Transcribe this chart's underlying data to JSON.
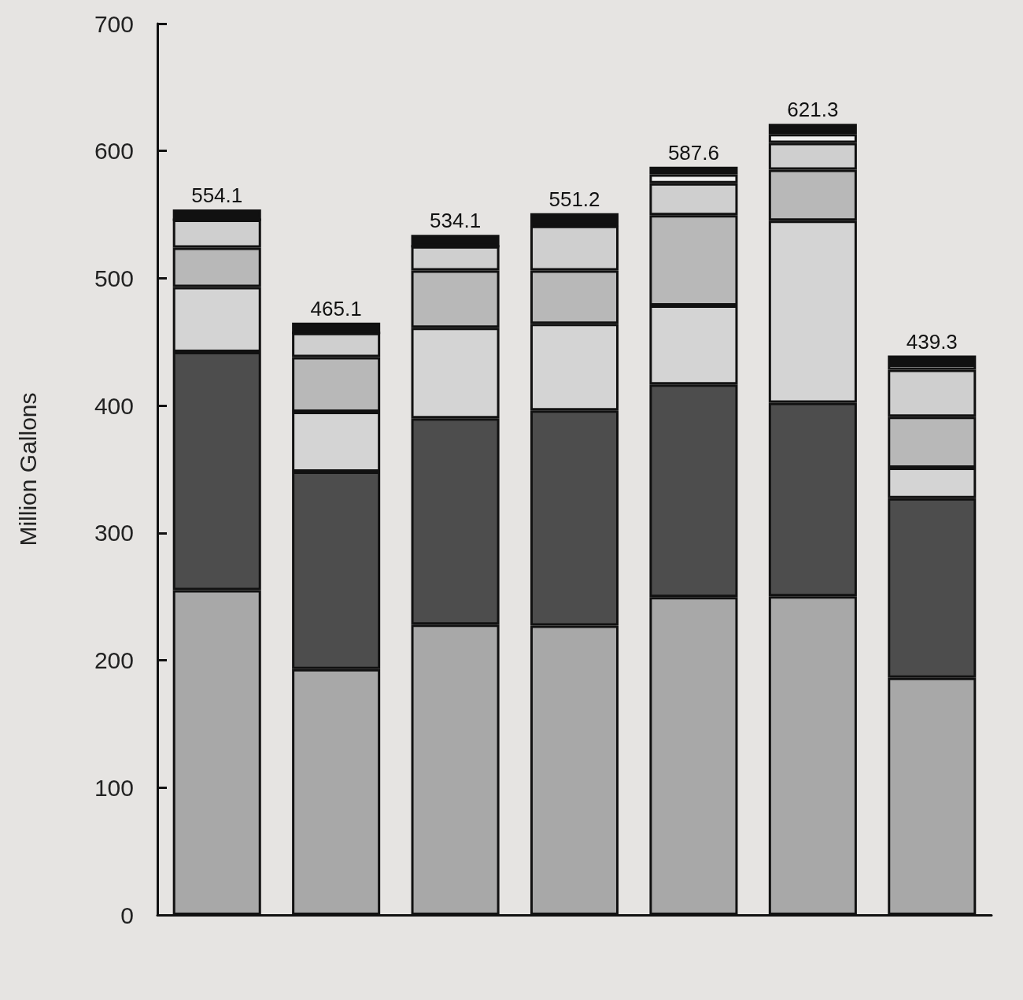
{
  "chart_data": {
    "type": "bar",
    "stacked": true,
    "ylabel": "Million Gallons",
    "categories": [
      null,
      null,
      null,
      null,
      null,
      null,
      null
    ],
    "series": [
      {
        "color": "#a8a8a8",
        "values": [
          255.1,
          193.1,
          228.1,
          227.2,
          249.6,
          250.3,
          186.3
        ]
      },
      {
        "color": "#4d4d4d",
        "values": [
          187,
          155,
          162,
          169,
          167,
          152,
          141
        ]
      },
      {
        "color": "#d4d4d4",
        "values": [
          51,
          47,
          71,
          68,
          62,
          143,
          24
        ]
      },
      {
        "color": "#b8b8b8",
        "values": [
          31,
          43,
          45,
          42,
          71,
          40,
          40
        ]
      },
      {
        "color": "#cfcfcf",
        "values": [
          22,
          19,
          19,
          35,
          25,
          21,
          37
        ]
      },
      {
        "color": "#f0f0f0",
        "values": [
          0,
          0,
          0,
          0,
          7,
          7,
          4
        ]
      },
      {
        "color": "#111111",
        "values": [
          8,
          8,
          9,
          10,
          6,
          8,
          7
        ]
      }
    ],
    "totals": [
      "554.1",
      "465.1",
      "534.1",
      "551.2",
      "587.6",
      "621.3",
      "439.3"
    ],
    "ylim": [
      0,
      700
    ],
    "yticks": [
      0,
      100,
      200,
      300,
      400,
      500,
      600,
      700
    ],
    "grid": false,
    "tick_labels": "y"
  }
}
